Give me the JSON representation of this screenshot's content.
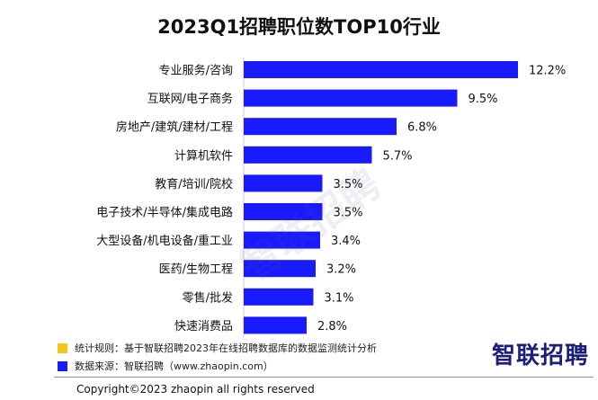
{
  "chart_data": {
    "type": "bar",
    "orientation": "horizontal",
    "title": "2023Q1招聘职位数TOP10行业",
    "categories": [
      "专业服务/咨询",
      "互联网/电子商务",
      "房地产/建筑/建材/工程",
      "计算机软件",
      "教育/培训/院校",
      "电子技术/半导体/集成电路",
      "大型设备/机电设备/重工业",
      "医药/生物工程",
      "零售/批发",
      "快速消费品"
    ],
    "values": [
      12.2,
      9.5,
      6.8,
      5.7,
      3.5,
      3.5,
      3.4,
      3.2,
      3.1,
      2.8
    ],
    "value_labels": [
      "12.2%",
      "9.5%",
      "6.8%",
      "5.7%",
      "3.5%",
      "3.5%",
      "3.4%",
      "3.2%",
      "3.1%",
      "2.8%"
    ],
    "unit": "%",
    "bar_color": "#1a1aff",
    "grid": false,
    "legend": "none"
  },
  "watermark": "智联招聘",
  "notes": [
    {
      "text": "统计规则：基于智联招聘2023年在线招聘数据库的数据监测统计分析",
      "color": "#f5c518"
    },
    {
      "text": "数据来源：智联招聘（www.zhaopin.com）",
      "color": "#1a1aff"
    }
  ],
  "logo": "智联招聘",
  "copyright": "Copyright©2023 zhaopin all rights reserved"
}
